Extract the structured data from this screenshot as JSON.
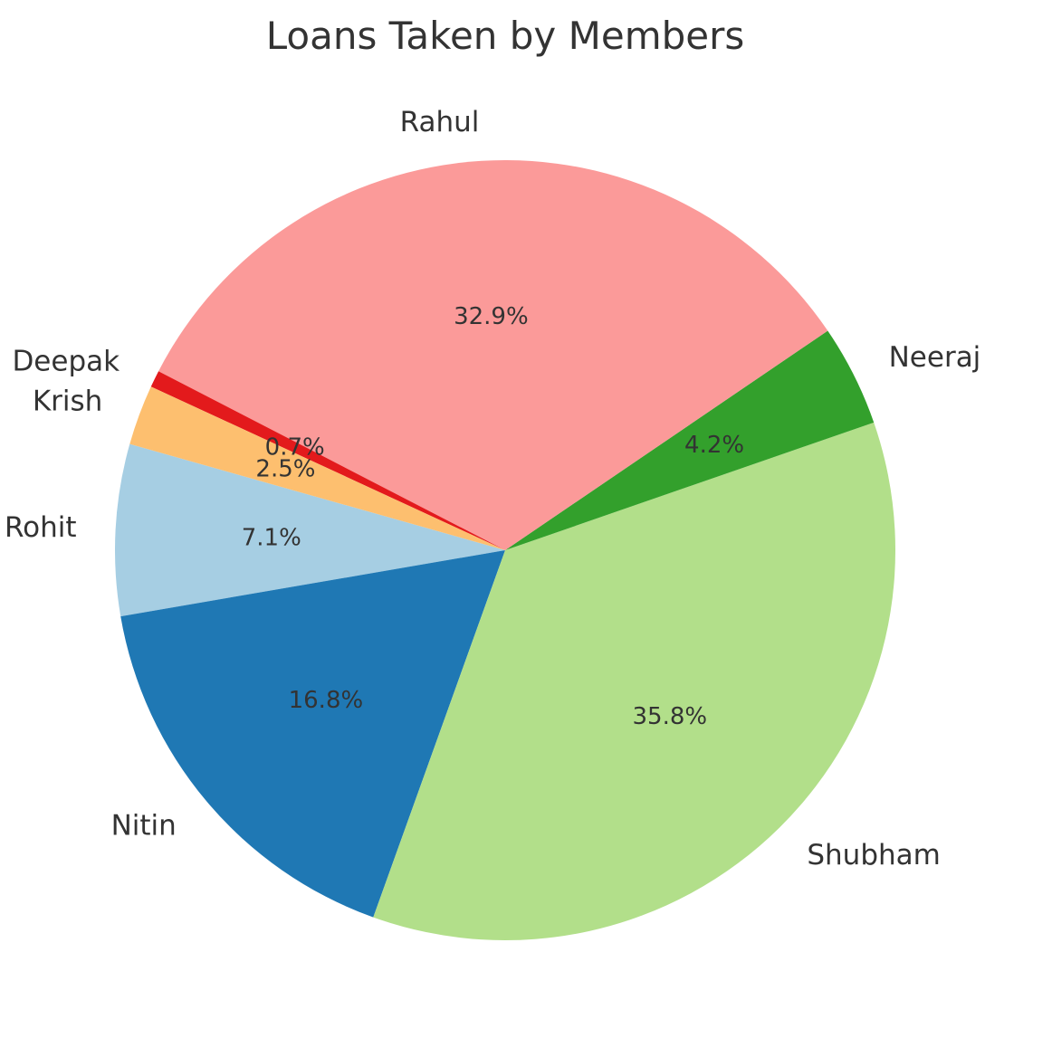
{
  "chart_data": {
    "type": "pie",
    "title": "Loans Taken by Members",
    "slices": [
      {
        "label": "Rohit",
        "value": 7.1,
        "pct_text": "7.1%",
        "color": "#a6cee3"
      },
      {
        "label": "Nitin",
        "value": 16.8,
        "pct_text": "16.8%",
        "color": "#1f78b4"
      },
      {
        "label": "Shubham",
        "value": 35.8,
        "pct_text": "35.8%",
        "color": "#b2df8a"
      },
      {
        "label": "Neeraj",
        "value": 4.2,
        "pct_text": "4.2%",
        "color": "#33a02c"
      },
      {
        "label": "Rahul",
        "value": 32.9,
        "pct_text": "32.9%",
        "color": "#fb9a99"
      },
      {
        "label": "Deepak",
        "value": 0.7,
        "pct_text": "0.7%",
        "color": "#e31a1c"
      },
      {
        "label": "Krish",
        "value": 2.5,
        "pct_text": "2.5%",
        "color": "#fdbf6f"
      }
    ],
    "start_angle_deg": 164.2,
    "direction": "counterclockwise"
  }
}
